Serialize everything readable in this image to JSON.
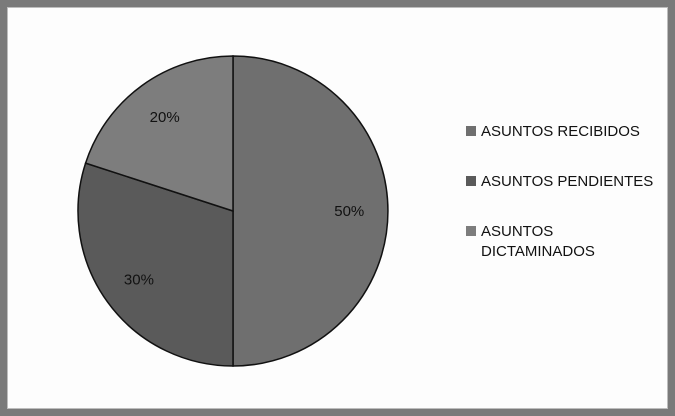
{
  "chart_data": {
    "type": "pie",
    "categories": [
      "ASUNTOS RECIBIDOS",
      "ASUNTOS PENDIENTES",
      "ASUNTOS DICTAMINADOS"
    ],
    "values": [
      50,
      30,
      20
    ],
    "labels": [
      "50%",
      "30%",
      "20%"
    ],
    "legend_position": "right",
    "colors": [
      "#6f6f6f",
      "#5a5a5a",
      "#7d7d7d"
    ]
  }
}
